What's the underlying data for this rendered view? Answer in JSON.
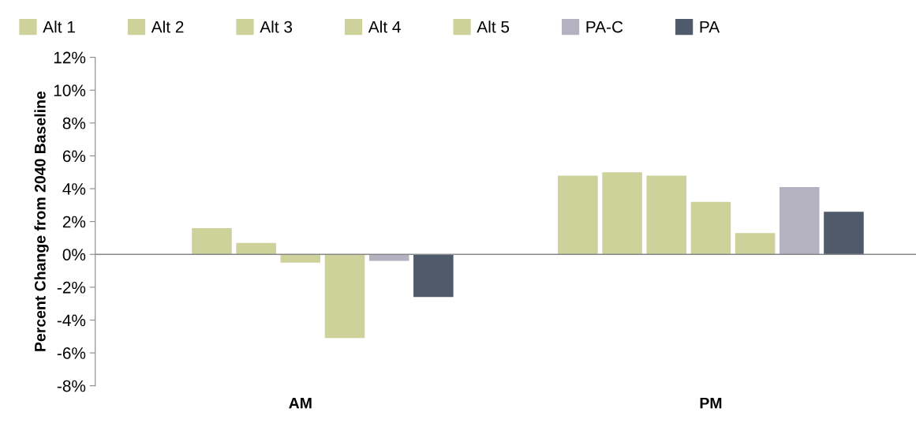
{
  "chart_data": {
    "type": "bar",
    "ylabel": "Percent Change from 2040 Baseline",
    "categories": [
      "AM",
      "PM"
    ],
    "series": [
      {
        "name": "Alt 1",
        "color": "#cdd19a",
        "values": [
          0,
          4.8
        ]
      },
      {
        "name": "Alt 2",
        "color": "#cdd19a",
        "values": [
          1.6,
          5.0
        ]
      },
      {
        "name": "Alt 3",
        "color": "#cdd19a",
        "values": [
          0.7,
          4.8
        ]
      },
      {
        "name": "Alt 4",
        "color": "#cdd19a",
        "values": [
          -0.5,
          3.2
        ]
      },
      {
        "name": "Alt 5",
        "color": "#cdd19a",
        "values": [
          -5.1,
          1.3
        ]
      },
      {
        "name": "PA-C",
        "color": "#b4b2c0",
        "values": [
          -0.4,
          4.1
        ]
      },
      {
        "name": "PA",
        "color": "#4f5a6a",
        "values": [
          -2.6,
          2.6
        ]
      }
    ],
    "ylim": [
      -8,
      12
    ],
    "yticks": [
      {
        "value": -8,
        "label": "-8%"
      },
      {
        "value": -6,
        "label": "-6%"
      },
      {
        "value": -4,
        "label": "-4%"
      },
      {
        "value": -2,
        "label": "-2%"
      },
      {
        "value": 0,
        "label": "0%"
      },
      {
        "value": 2,
        "label": "2%"
      },
      {
        "value": 4,
        "label": "4%"
      },
      {
        "value": 6,
        "label": "6%"
      },
      {
        "value": 8,
        "label": "8%"
      },
      {
        "value": 10,
        "label": "10%"
      },
      {
        "value": 12,
        "label": "12%"
      }
    ],
    "ref_lines": [
      {
        "axis": "y",
        "value": 0,
        "color": "#888888"
      }
    ],
    "grid": false,
    "legend": "top"
  }
}
